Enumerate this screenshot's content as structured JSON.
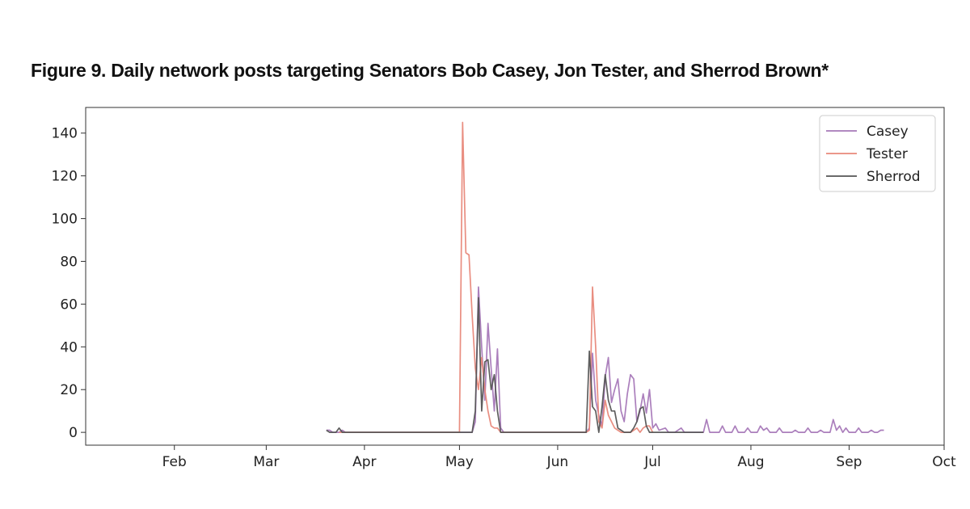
{
  "figure": {
    "title": "Figure 9. Daily network posts targeting Senators Bob Casey, Jon Tester, and Sherrod Brown*"
  },
  "chart_data": {
    "type": "line",
    "title": "Figure 9. Daily network posts targeting Senators Bob Casey, Jon Tester, and Sherrod Brown*",
    "xlabel": "",
    "ylabel": "",
    "x_tick_labels": [
      "Feb",
      "Mar",
      "Apr",
      "May",
      "Jun",
      "Jul",
      "Aug",
      "Sep",
      "Oct"
    ],
    "x_tick_dates": [
      "2024-02-01",
      "2024-03-01",
      "2024-04-01",
      "2024-05-01",
      "2024-06-01",
      "2024-07-01",
      "2024-08-01",
      "2024-09-01",
      "2024-10-01"
    ],
    "y_ticks": [
      0,
      20,
      40,
      60,
      80,
      100,
      120,
      140
    ],
    "xlim": [
      "2024-01-04",
      "2024-10-01"
    ],
    "ylim": [
      -6,
      152
    ],
    "grid": false,
    "legend": "top-right",
    "series": [
      {
        "name": "Casey",
        "color": "#a678b8",
        "points": [
          [
            "2024-03-20",
            1
          ],
          [
            "2024-03-21",
            1
          ],
          [
            "2024-03-22",
            0
          ],
          [
            "2024-03-24",
            0
          ],
          [
            "2024-03-25",
            1
          ],
          [
            "2024-03-26",
            0
          ],
          [
            "2024-05-05",
            0
          ],
          [
            "2024-05-06",
            5
          ],
          [
            "2024-05-07",
            68
          ],
          [
            "2024-05-08",
            40
          ],
          [
            "2024-05-09",
            15
          ],
          [
            "2024-05-10",
            51
          ],
          [
            "2024-05-11",
            30
          ],
          [
            "2024-05-12",
            10
          ],
          [
            "2024-05-13",
            39
          ],
          [
            "2024-05-14",
            2
          ],
          [
            "2024-05-15",
            0
          ],
          [
            "2024-06-10",
            0
          ],
          [
            "2024-06-11",
            2
          ],
          [
            "2024-06-12",
            37
          ],
          [
            "2024-06-13",
            15
          ],
          [
            "2024-06-14",
            8
          ],
          [
            "2024-06-15",
            3
          ],
          [
            "2024-06-16",
            26
          ],
          [
            "2024-06-17",
            35
          ],
          [
            "2024-06-18",
            14
          ],
          [
            "2024-06-19",
            20
          ],
          [
            "2024-06-20",
            25
          ],
          [
            "2024-06-21",
            10
          ],
          [
            "2024-06-22",
            5
          ],
          [
            "2024-06-23",
            18
          ],
          [
            "2024-06-24",
            27
          ],
          [
            "2024-06-25",
            25
          ],
          [
            "2024-06-26",
            5
          ],
          [
            "2024-06-27",
            10
          ],
          [
            "2024-06-28",
            18
          ],
          [
            "2024-06-29",
            9
          ],
          [
            "2024-06-30",
            20
          ],
          [
            "2024-07-01",
            2
          ],
          [
            "2024-07-02",
            4
          ],
          [
            "2024-07-03",
            1
          ],
          [
            "2024-07-05",
            2
          ],
          [
            "2024-07-06",
            0
          ],
          [
            "2024-07-08",
            0
          ],
          [
            "2024-07-10",
            2
          ],
          [
            "2024-07-11",
            0
          ],
          [
            "2024-07-17",
            0
          ],
          [
            "2024-07-18",
            6
          ],
          [
            "2024-07-19",
            0
          ],
          [
            "2024-07-22",
            0
          ],
          [
            "2024-07-23",
            3
          ],
          [
            "2024-07-24",
            0
          ],
          [
            "2024-07-26",
            0
          ],
          [
            "2024-07-27",
            3
          ],
          [
            "2024-07-28",
            0
          ],
          [
            "2024-07-30",
            0
          ],
          [
            "2024-07-31",
            2
          ],
          [
            "2024-08-01",
            0
          ],
          [
            "2024-08-03",
            0
          ],
          [
            "2024-08-04",
            3
          ],
          [
            "2024-08-05",
            1
          ],
          [
            "2024-08-06",
            2
          ],
          [
            "2024-08-07",
            0
          ],
          [
            "2024-08-09",
            0
          ],
          [
            "2024-08-10",
            2
          ],
          [
            "2024-08-11",
            0
          ],
          [
            "2024-08-14",
            0
          ],
          [
            "2024-08-15",
            1
          ],
          [
            "2024-08-16",
            0
          ],
          [
            "2024-08-18",
            0
          ],
          [
            "2024-08-19",
            2
          ],
          [
            "2024-08-20",
            0
          ],
          [
            "2024-08-22",
            0
          ],
          [
            "2024-08-23",
            1
          ],
          [
            "2024-08-24",
            0
          ],
          [
            "2024-08-26",
            0
          ],
          [
            "2024-08-27",
            6
          ],
          [
            "2024-08-28",
            1
          ],
          [
            "2024-08-29",
            3
          ],
          [
            "2024-08-30",
            0
          ],
          [
            "2024-08-31",
            2
          ],
          [
            "2024-09-01",
            0
          ],
          [
            "2024-09-03",
            0
          ],
          [
            "2024-09-04",
            2
          ],
          [
            "2024-09-05",
            0
          ],
          [
            "2024-09-07",
            0
          ],
          [
            "2024-09-08",
            1
          ],
          [
            "2024-09-09",
            0
          ],
          [
            "2024-09-10",
            0
          ],
          [
            "2024-09-11",
            1
          ],
          [
            "2024-09-12",
            1
          ]
        ]
      },
      {
        "name": "Tester",
        "color": "#e8887a",
        "points": [
          [
            "2024-03-24",
            0
          ],
          [
            "2024-05-01",
            0
          ],
          [
            "2024-05-02",
            145
          ],
          [
            "2024-05-03",
            84
          ],
          [
            "2024-05-04",
            83
          ],
          [
            "2024-05-05",
            55
          ],
          [
            "2024-05-06",
            30
          ],
          [
            "2024-05-07",
            20
          ],
          [
            "2024-05-08",
            35
          ],
          [
            "2024-05-09",
            20
          ],
          [
            "2024-05-10",
            10
          ],
          [
            "2024-05-11",
            3
          ],
          [
            "2024-05-12",
            2
          ],
          [
            "2024-05-13",
            2
          ],
          [
            "2024-05-14",
            0
          ],
          [
            "2024-06-10",
            0
          ],
          [
            "2024-06-11",
            1
          ],
          [
            "2024-06-12",
            68
          ],
          [
            "2024-06-13",
            40
          ],
          [
            "2024-06-14",
            5
          ],
          [
            "2024-06-15",
            2
          ],
          [
            "2024-06-16",
            15
          ],
          [
            "2024-06-17",
            8
          ],
          [
            "2024-06-18",
            5
          ],
          [
            "2024-06-19",
            2
          ],
          [
            "2024-06-20",
            1
          ],
          [
            "2024-06-21",
            0
          ],
          [
            "2024-06-24",
            0
          ],
          [
            "2024-06-25",
            1
          ],
          [
            "2024-06-26",
            2
          ],
          [
            "2024-06-27",
            0
          ],
          [
            "2024-06-28",
            2
          ],
          [
            "2024-06-29",
            3
          ],
          [
            "2024-06-30",
            3
          ],
          [
            "2024-07-01",
            0
          ]
        ]
      },
      {
        "name": "Sherrod",
        "color": "#555555",
        "points": [
          [
            "2024-03-20",
            1
          ],
          [
            "2024-03-21",
            0
          ],
          [
            "2024-03-23",
            0
          ],
          [
            "2024-03-24",
            2
          ],
          [
            "2024-03-25",
            0
          ],
          [
            "2024-05-05",
            0
          ],
          [
            "2024-05-06",
            10
          ],
          [
            "2024-05-07",
            63
          ],
          [
            "2024-05-08",
            10
          ],
          [
            "2024-05-09",
            33
          ],
          [
            "2024-05-10",
            34
          ],
          [
            "2024-05-11",
            20
          ],
          [
            "2024-05-12",
            27
          ],
          [
            "2024-05-13",
            10
          ],
          [
            "2024-05-14",
            0
          ],
          [
            "2024-06-10",
            0
          ],
          [
            "2024-06-11",
            38
          ],
          [
            "2024-06-12",
            12
          ],
          [
            "2024-06-13",
            10
          ],
          [
            "2024-06-14",
            0
          ],
          [
            "2024-06-15",
            12
          ],
          [
            "2024-06-16",
            27
          ],
          [
            "2024-06-17",
            15
          ],
          [
            "2024-06-18",
            10
          ],
          [
            "2024-06-19",
            10
          ],
          [
            "2024-06-20",
            2
          ],
          [
            "2024-06-21",
            1
          ],
          [
            "2024-06-22",
            0
          ],
          [
            "2024-06-24",
            0
          ],
          [
            "2024-06-25",
            2
          ],
          [
            "2024-06-26",
            5
          ],
          [
            "2024-06-27",
            11
          ],
          [
            "2024-06-28",
            12
          ],
          [
            "2024-06-29",
            3
          ],
          [
            "2024-06-30",
            0
          ],
          [
            "2024-07-17",
            0
          ]
        ]
      }
    ]
  }
}
